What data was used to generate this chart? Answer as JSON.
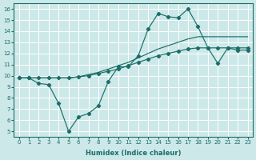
{
  "xlabel": "Humidex (Indice chaleur)",
  "bg_color": "#cde8e8",
  "grid_color": "#b8d8d8",
  "line_color": "#1a6e6a",
  "xlim": [
    -0.5,
    23.5
  ],
  "ylim": [
    4.5,
    16.5
  ],
  "xticks": [
    0,
    1,
    2,
    3,
    4,
    5,
    6,
    7,
    8,
    9,
    10,
    11,
    12,
    13,
    14,
    15,
    16,
    17,
    18,
    19,
    20,
    21,
    22,
    23
  ],
  "yticks": [
    5,
    6,
    7,
    8,
    9,
    10,
    11,
    12,
    13,
    14,
    15,
    16
  ],
  "line1_x": [
    0,
    1,
    2,
    3,
    4,
    5,
    6,
    7,
    8,
    9,
    10,
    11,
    12,
    13,
    14,
    15,
    16,
    17,
    18,
    19,
    20,
    21,
    22,
    23
  ],
  "line1_y": [
    9.8,
    9.8,
    9.3,
    9.2,
    7.5,
    5.0,
    6.3,
    6.6,
    7.3,
    9.5,
    10.8,
    10.8,
    11.8,
    14.2,
    15.6,
    15.3,
    15.2,
    16.0,
    14.4,
    12.5,
    11.1,
    12.5,
    12.3,
    12.3
  ],
  "line2_x": [
    0,
    1,
    2,
    3,
    4,
    5,
    6,
    7,
    8,
    9,
    10,
    11,
    12,
    13,
    14,
    15,
    16,
    17,
    18,
    19,
    20,
    21,
    22,
    23
  ],
  "line2_y": [
    9.8,
    9.8,
    9.8,
    9.8,
    9.8,
    9.8,
    9.9,
    10.0,
    10.2,
    10.4,
    10.6,
    10.9,
    11.2,
    11.5,
    11.8,
    12.0,
    12.2,
    12.4,
    12.5,
    12.5,
    12.5,
    12.5,
    12.5,
    12.5
  ],
  "line3_x": [
    0,
    1,
    2,
    3,
    4,
    5,
    6,
    7,
    8,
    9,
    10,
    11,
    12,
    13,
    14,
    15,
    16,
    17,
    18,
    19,
    20,
    21,
    22,
    23
  ],
  "line3_y": [
    9.8,
    9.8,
    9.8,
    9.8,
    9.8,
    9.8,
    9.9,
    10.1,
    10.3,
    10.6,
    10.9,
    11.2,
    11.6,
    12.0,
    12.4,
    12.7,
    13.0,
    13.3,
    13.5,
    13.5,
    13.5,
    13.5,
    13.5,
    13.5
  ]
}
